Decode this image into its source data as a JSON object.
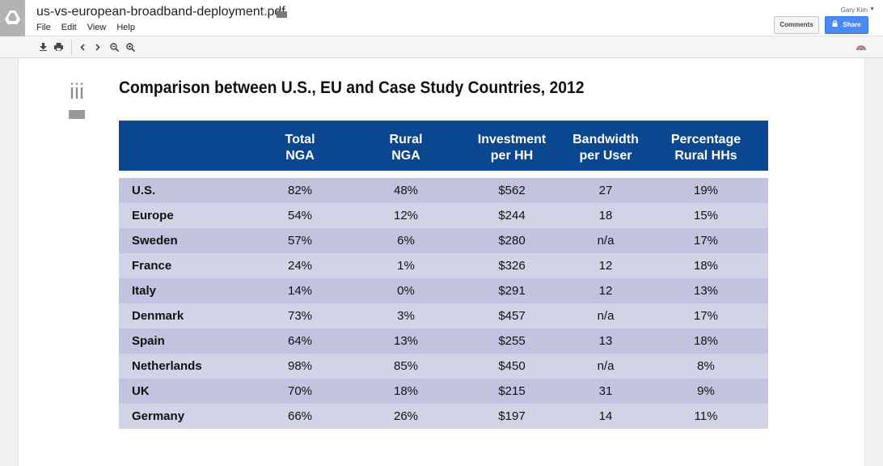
{
  "header": {
    "doc_title": "us-vs-european-broadband-deployment.pdf",
    "menu": [
      "File",
      "Edit",
      "View",
      "Help"
    ],
    "user_name": "Gary Kim",
    "comments_label": "Comments",
    "share_label": "Share"
  },
  "page": {
    "section_marker": "iii",
    "table_title": "Comparison between U.S., EU and Case Study Countries, 2012",
    "columns": [
      {
        "line1": "Total",
        "line2": "NGA"
      },
      {
        "line1": "Rural",
        "line2": "NGA"
      },
      {
        "line1": "Investment",
        "line2": "per HH"
      },
      {
        "line1": "Bandwidth",
        "line2": "per User"
      },
      {
        "line1": "Percentage",
        "line2": "Rural HHs"
      }
    ],
    "rows": [
      {
        "country": "U.S.",
        "total_nga": "82%",
        "rural_nga": "48%",
        "investment": "$562",
        "bandwidth": "27",
        "rural_hh": "19%"
      },
      {
        "country": "Europe",
        "total_nga": "54%",
        "rural_nga": "12%",
        "investment": "$244",
        "bandwidth": "18",
        "rural_hh": "15%"
      },
      {
        "country": "Sweden",
        "total_nga": "57%",
        "rural_nga": "6%",
        "investment": "$280",
        "bandwidth": "n/a",
        "rural_hh": "17%"
      },
      {
        "country": "France",
        "total_nga": "24%",
        "rural_nga": "1%",
        "investment": "$326",
        "bandwidth": "12",
        "rural_hh": "18%"
      },
      {
        "country": "Italy",
        "total_nga": "14%",
        "rural_nga": "0%",
        "investment": "$291",
        "bandwidth": "12",
        "rural_hh": "13%"
      },
      {
        "country": "Denmark",
        "total_nga": "73%",
        "rural_nga": "3%",
        "investment": "$457",
        "bandwidth": "n/a",
        "rural_hh": "17%"
      },
      {
        "country": "Spain",
        "total_nga": "64%",
        "rural_nga": "13%",
        "investment": "$255",
        "bandwidth": "13",
        "rural_hh": "18%"
      },
      {
        "country": "Netherlands",
        "total_nga": "98%",
        "rural_nga": "85%",
        "investment": "$450",
        "bandwidth": "n/a",
        "rural_hh": "8%"
      },
      {
        "country": "UK",
        "total_nga": "70%",
        "rural_nga": "18%",
        "investment": "$215",
        "bandwidth": "31",
        "rural_hh": "9%"
      },
      {
        "country": "Germany",
        "total_nga": "66%",
        "rural_nga": "26%",
        "investment": "$197",
        "bandwidth": "14",
        "rural_hh": "11%"
      }
    ]
  },
  "colors": {
    "header_blue": "#0b4691",
    "row_dark": "#c2c4df",
    "row_light": "#d1d4e7",
    "share_blue": "#4a8af4"
  },
  "icons": [
    "drive-logo-icon",
    "star-icon",
    "folder-icon",
    "download-icon",
    "print-icon",
    "prev-page-icon",
    "next-page-icon",
    "zoom-out-icon",
    "zoom-in-icon",
    "account-icon",
    "lock-icon"
  ]
}
